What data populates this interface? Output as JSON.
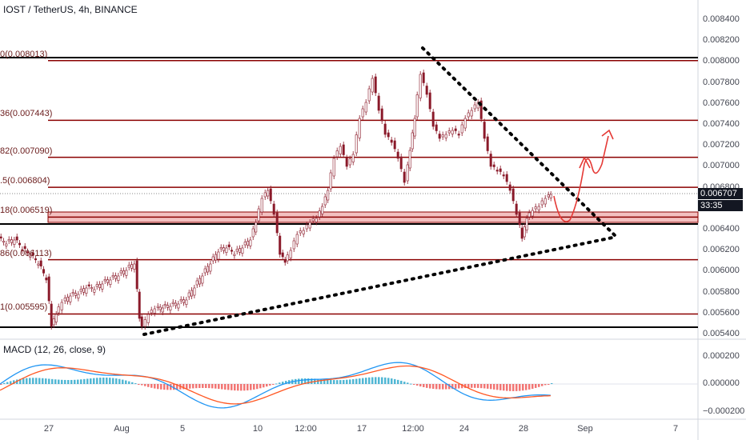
{
  "header": {
    "title": "IOST / TetherUS, 4h, BINANCE"
  },
  "indicator": {
    "title": "MACD (12, 26, close, 9)"
  },
  "colors": {
    "fib_line": "#8b0000",
    "support_band": "#e57373",
    "up_candle": "#ffffff",
    "down_candle": "#8b1a2a",
    "macd_line": "#2196f3",
    "signal_line": "#ff5722",
    "hist_up": "#26a5c9",
    "hist_down": "#ef5350",
    "arrow": "#e53935"
  },
  "fib_levels": [
    {
      "label": "0(0.008013)",
      "value": 0.008013
    },
    {
      "label": "36(0.007443)",
      "value": 0.007443
    },
    {
      "label": "82(0.007090)",
      "value": 0.00709
    },
    {
      "label": ".5(0.006804)",
      "value": 0.006804
    },
    {
      "label": "18(0.006519)",
      "value": 0.006519
    },
    {
      "label": "86(0.006113)",
      "value": 0.006113
    },
    {
      "label": "1(0.005595)",
      "value": 0.005595
    }
  ],
  "y_axis": {
    "ticks": [
      "0.008400",
      "0.008200",
      "0.008000",
      "0.007800",
      "0.007600",
      "0.007400",
      "0.007200",
      "0.007000",
      "0.006800",
      "0.006400",
      "0.006200",
      "0.006000",
      "0.005800",
      "0.005600",
      "0.005400"
    ],
    "current_price": "0.006707",
    "countdown": "33:35"
  },
  "macd_axis": {
    "ticks": [
      "0.000200",
      "0.000000",
      "−0.000200"
    ]
  },
  "x_axis": {
    "ticks": [
      "27",
      "Aug",
      "5",
      "10",
      "12:00",
      "17",
      "12:00",
      "24",
      "28",
      "Sep",
      "7"
    ]
  }
}
